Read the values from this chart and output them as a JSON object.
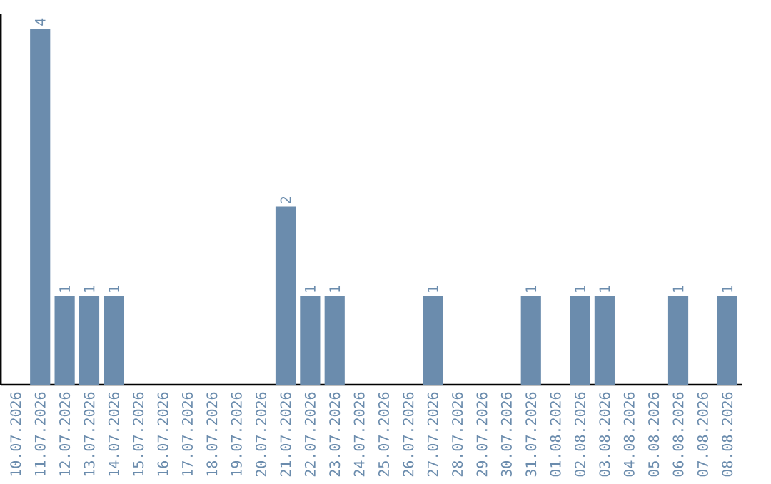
{
  "chart_data": {
    "type": "bar",
    "color": "#6b8cad",
    "categories": [
      "10.07.2026",
      "11.07.2026",
      "12.07.2026",
      "13.07.2026",
      "14.07.2026",
      "15.07.2026",
      "16.07.2026",
      "17.07.2026",
      "18.07.2026",
      "19.07.2026",
      "20.07.2026",
      "21.07.2026",
      "22.07.2026",
      "23.07.2026",
      "24.07.2026",
      "25.07.2026",
      "26.07.2026",
      "27.07.2026",
      "28.07.2026",
      "29.07.2026",
      "30.07.2026",
      "31.07.2026",
      "01.08.2026",
      "02.08.2026",
      "03.08.2026",
      "04.08.2026",
      "05.08.2026",
      "06.08.2026",
      "07.08.2026",
      "08.08.2026"
    ],
    "values": [
      0,
      4,
      1,
      1,
      1,
      0,
      0,
      0,
      0,
      0,
      0,
      2,
      1,
      1,
      0,
      0,
      0,
      1,
      0,
      0,
      0,
      1,
      0,
      1,
      1,
      0,
      0,
      1,
      0,
      1
    ],
    "value_labels": [
      null,
      "4",
      "1",
      "1",
      "1",
      null,
      null,
      null,
      null,
      null,
      null,
      "2",
      "1",
      "1",
      null,
      null,
      null,
      "1",
      null,
      null,
      null,
      "1",
      null,
      "1",
      "1",
      null,
      null,
      "1",
      null,
      "1"
    ],
    "tick_labels": "x",
    "grid": false
  }
}
